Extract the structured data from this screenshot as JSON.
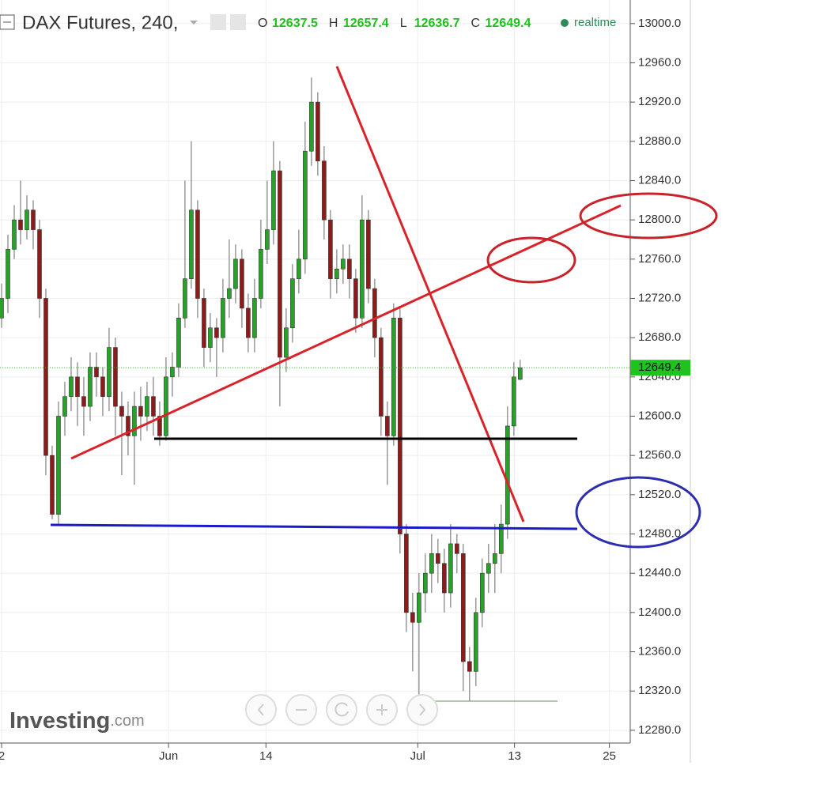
{
  "chart_data": {
    "type": "candlestick",
    "title": "DAX Futures, 240,",
    "ohlc_labels": [
      "O",
      "H",
      "L",
      "C"
    ],
    "status": "realtime",
    "brand": "Investing",
    "brand_suffix": ".com",
    "up_color": "#26a226",
    "down_color": "#8e1b1b",
    "grid": true,
    "open": [
      12700,
      12720,
      12770,
      12800,
      12790,
      12810,
      12790,
      12720,
      12560,
      12500,
      12600,
      12620,
      12640,
      12620,
      12610,
      12650,
      12640,
      12620,
      12670,
      12610,
      12600,
      12580,
      12610,
      12600,
      12620,
      12600,
      12580,
      12640,
      12650,
      12700,
      12740,
      12810,
      12720,
      12670,
      12690,
      12680,
      12720,
      12730,
      12760,
      12710,
      12680,
      12720,
      12770,
      12790,
      12850,
      12660,
      12690,
      12740,
      12760,
      12870,
      12920,
      12860,
      12800,
      12740,
      12750,
      12760,
      12740,
      12700,
      12800,
      12730,
      12680,
      12600,
      12580,
      12700,
      12480,
      12400,
      12390,
      12420,
      12440,
      12460,
      12450,
      12420,
      12470,
      12460,
      12350,
      12340,
      12400,
      12440,
      12450,
      12460,
      12490,
      12590,
      12637.5
    ],
    "high": [
      12735,
      12785,
      12815,
      12840,
      12825,
      12820,
      12800,
      12730,
      12570,
      12615,
      12635,
      12660,
      12655,
      12640,
      12665,
      12665,
      12650,
      12690,
      12680,
      12625,
      12615,
      12625,
      12630,
      12635,
      12640,
      12615,
      12660,
      12665,
      12715,
      12840,
      12880,
      12820,
      12730,
      12705,
      12700,
      12740,
      12780,
      12775,
      12770,
      12725,
      12740,
      12800,
      12840,
      12880,
      12860,
      12710,
      12755,
      12790,
      12900,
      12945,
      12930,
      12875,
      12810,
      12770,
      12775,
      12775,
      12750,
      12825,
      12810,
      12740,
      12690,
      12615,
      12715,
      12710,
      12490,
      12420,
      12440,
      12460,
      12480,
      12475,
      12465,
      12490,
      12480,
      12470,
      12365,
      12415,
      12455,
      12470,
      12490,
      12510,
      12610,
      12655,
      12657.4
    ],
    "low": [
      12690,
      12705,
      12760,
      12775,
      12780,
      12770,
      12700,
      12540,
      12495,
      12490,
      12580,
      12605,
      12590,
      12580,
      12595,
      12620,
      12600,
      12605,
      12580,
      12540,
      12560,
      12530,
      12575,
      12585,
      12580,
      12570,
      12575,
      12620,
      12640,
      12690,
      12730,
      12700,
      12650,
      12655,
      12640,
      12665,
      12700,
      12715,
      12690,
      12665,
      12665,
      12710,
      12755,
      12775,
      12610,
      12645,
      12675,
      12725,
      12745,
      12855,
      12845,
      12780,
      12720,
      12725,
      12735,
      12720,
      12685,
      12690,
      12715,
      12660,
      12580,
      12530,
      12570,
      12460,
      12380,
      12340,
      12310,
      12400,
      12420,
      12430,
      12400,
      12405,
      12440,
      12320,
      12310,
      12325,
      12385,
      12420,
      12420,
      12440,
      12475,
      12580,
      12636.7
    ],
    "close": [
      12720,
      12770,
      12800,
      12790,
      12810,
      12790,
      12720,
      12560,
      12500,
      12600,
      12620,
      12640,
      12620,
      12610,
      12650,
      12640,
      12620,
      12670,
      12610,
      12600,
      12580,
      12610,
      12600,
      12620,
      12600,
      12580,
      12640,
      12650,
      12700,
      12740,
      12810,
      12720,
      12670,
      12690,
      12680,
      12720,
      12730,
      12760,
      12710,
      12680,
      12720,
      12770,
      12790,
      12850,
      12660,
      12690,
      12740,
      12760,
      12870,
      12920,
      12860,
      12800,
      12740,
      12750,
      12760,
      12740,
      12700,
      12800,
      12730,
      12680,
      12600,
      12580,
      12700,
      12480,
      12400,
      12390,
      12420,
      12440,
      12460,
      12450,
      12420,
      12470,
      12460,
      12350,
      12340,
      12400,
      12440,
      12450,
      12460,
      12490,
      12590,
      12640,
      12649.4
    ],
    "xlim": [
      -0.25,
      99.4
    ],
    "xticks": [
      {
        "value": 0,
        "label": "2"
      },
      {
        "value": 26.4,
        "label": "Jun"
      },
      {
        "value": 41.8,
        "label": "14"
      },
      {
        "value": 65.8,
        "label": "Jul"
      },
      {
        "value": 81.1,
        "label": "13"
      },
      {
        "value": 96.1,
        "label": "25"
      }
    ],
    "ylim": [
      12267,
      13024
    ],
    "yticks": [
      {
        "value": 12280,
        "label": "12280.0"
      },
      {
        "value": 12320,
        "label": "12320.0"
      },
      {
        "value": 12360,
        "label": "12360.0"
      },
      {
        "value": 12400,
        "label": "12400.0"
      },
      {
        "value": 12440,
        "label": "12440.0"
      },
      {
        "value": 12480,
        "label": "12480.0"
      },
      {
        "value": 12520,
        "label": "12520.0"
      },
      {
        "value": 12560,
        "label": "12560.0"
      },
      {
        "value": 12600,
        "label": "12600.0"
      },
      {
        "value": 12640,
        "label": "12640.0"
      },
      {
        "value": 12680,
        "label": "12680.0"
      },
      {
        "value": 12720,
        "label": "12720.0"
      },
      {
        "value": 12760,
        "label": "12760.0"
      },
      {
        "value": 12800,
        "label": "12800.0"
      },
      {
        "value": 12840,
        "label": "12840.0"
      },
      {
        "value": 12880,
        "label": "12880.0"
      },
      {
        "value": 12920,
        "label": "12920.0"
      },
      {
        "value": 12960,
        "label": "12960.0"
      },
      {
        "value": 13000,
        "label": "13000.0"
      }
    ]
  }
}
